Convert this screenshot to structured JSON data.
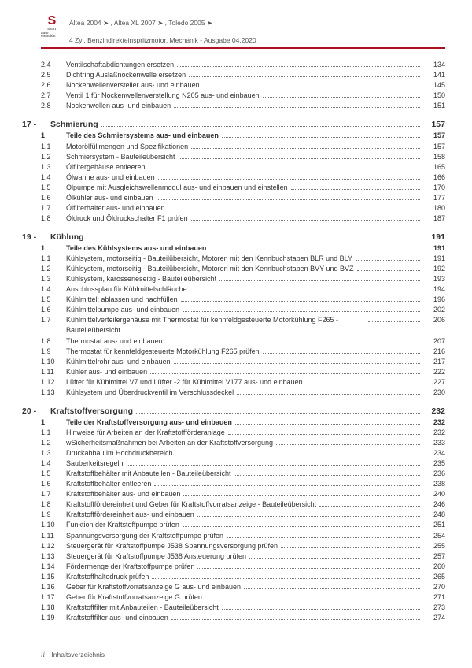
{
  "header": {
    "brand": "SEAT",
    "brand_sub": "auto emoción",
    "models": "Altea 2004 ➤ , Altea XL 2007 ➤ , Toledo 2005 ➤",
    "subtitle": "4 Zyl. Benzindirekteinspritzmotor, Mechanik - Ausgabe 04.2020",
    "divider_color": "#b01020"
  },
  "preItems": [
    {
      "num": "2.4",
      "label": "Ventilschaftabdichtungen ersetzen",
      "page": "134"
    },
    {
      "num": "2.5",
      "label": "Dichtring Auslaßnockenwelle ersetzen",
      "page": "141"
    },
    {
      "num": "2.6",
      "label": "Nockenwellenversteller aus- und einbauen",
      "page": "145"
    },
    {
      "num": "2.7",
      "label": "Ventil 1 für Nockenwellenverstellung N205 aus- und einbauen",
      "page": "150"
    },
    {
      "num": "2.8",
      "label": "Nockenwellen aus- und einbauen",
      "page": "151"
    }
  ],
  "sections": [
    {
      "num": "17 -",
      "title": "Schmierung",
      "page": "157",
      "subhead": {
        "num": "1",
        "label": "Teile des Schmiersystems aus- und einbauen",
        "page": "157"
      },
      "items": [
        {
          "num": "1.1",
          "label": "Motorölfüllmengen und Spezifikationen",
          "page": "157"
        },
        {
          "num": "1.2",
          "label": "Schmiersystem - Bauteileübersicht",
          "page": "158"
        },
        {
          "num": "1.3",
          "label": "Ölfiltergehäuse entleeren",
          "page": "165"
        },
        {
          "num": "1.4",
          "label": "Ölwanne aus- und einbauen",
          "page": "166"
        },
        {
          "num": "1.5",
          "label": "Ölpumpe mit Ausgleichswellenmodul aus- und einbauen und einstellen",
          "page": "170"
        },
        {
          "num": "1.6",
          "label": "Ölkühler aus- und einbauen",
          "page": "177"
        },
        {
          "num": "1.7",
          "label": "Ölfilterhalter aus- und einbauen",
          "page": "180"
        },
        {
          "num": "1.8",
          "label": "Öldruck und Öldruckschalter F1 prüfen",
          "page": "187"
        }
      ]
    },
    {
      "num": "19 -",
      "title": "Kühlung",
      "page": "191",
      "subhead": {
        "num": "1",
        "label": "Teile des Kühlsystems aus- und einbauen",
        "page": "191"
      },
      "items": [
        {
          "num": "1.1",
          "label": "Kühlsystem, motorseitig - Bauteilübersicht, Motoren mit den Kennbuchstaben BLR und BLY",
          "page": "191"
        },
        {
          "num": "1.2",
          "label": "Kühlsystem, motorseitig - Bauteilübersicht, Motoren mit den Kennbuchstaben BVY und BVZ",
          "page": "192"
        },
        {
          "num": "1.3",
          "label": "Kühlsystem, karosserieseitig - Bauteileübersicht",
          "page": "193"
        },
        {
          "num": "1.4",
          "label": "Anschlussplan für Kühlmittelschläuche",
          "page": "194"
        },
        {
          "num": "1.5",
          "label": "Kühlmittel: ablassen und nachfüllen",
          "page": "196"
        },
        {
          "num": "1.6",
          "label": "Kühlmittelpumpe aus- und einbauen",
          "page": "202"
        },
        {
          "num": "1.7",
          "label": "Kühlmittelverteilergehäuse mit Thermostat für kennfeldgesteuerte Motorkühlung F265 - Bauteileübersicht",
          "page": "206"
        },
        {
          "num": "1.8",
          "label": "Thermostat aus- und einbauen",
          "page": "207"
        },
        {
          "num": "1.9",
          "label": "Thermostat für kennfeldgesteuerte Motorkühlung F265 prüfen",
          "page": "216"
        },
        {
          "num": "1.10",
          "label": "Kühlmittelrohr aus- und einbauen",
          "page": "217"
        },
        {
          "num": "1.11",
          "label": "Kühler aus- und einbauen",
          "page": "222"
        },
        {
          "num": "1.12",
          "label": "Lüfter für Kühlmittel V7 und Lüfter -2 für Kühlmittel V177 aus- und einbauen",
          "page": "227"
        },
        {
          "num": "1.13",
          "label": "Kühlsystem und Überdruckventil im Verschlussdeckel",
          "page": "230"
        }
      ]
    },
    {
      "num": "20 -",
      "title": "Kraftstoffversorgung",
      "page": "232",
      "subhead": {
        "num": "1",
        "label": "Teile der Kraftstoffversorgung aus- und einbauen",
        "page": "232"
      },
      "items": [
        {
          "num": "1.1",
          "label": "Hinweise für Arbeiten an der Kraftstoffförderanlage",
          "page": "232"
        },
        {
          "num": "1.2",
          "label": "wSicherheitsmaßnahmen bei Arbeiten an der Kraftstoffversorgung",
          "page": "233"
        },
        {
          "num": "1.3",
          "label": "Druckabbau im Hochdruckbereich",
          "page": "234"
        },
        {
          "num": "1.4",
          "label": "Sauberkeitsregeln",
          "page": "235"
        },
        {
          "num": "1.5",
          "label": "Kraftstoffbehälter mit Anbauteilen - Bauteileübersicht",
          "page": "236"
        },
        {
          "num": "1.6",
          "label": "Kraftstoffbehälter entleeren",
          "page": "238"
        },
        {
          "num": "1.7",
          "label": "Kraftstoffbehälter aus- und einbauen",
          "page": "240"
        },
        {
          "num": "1.8",
          "label": "Kraftstofffördereinheit und Geber für Kraftstoffvorratsanzeige - Bauteileübersicht",
          "page": "246"
        },
        {
          "num": "1.9",
          "label": "Kraftstofffördereinheit aus- und einbauen",
          "page": "248"
        },
        {
          "num": "1.10",
          "label": "Funktion der Kraftstoffpumpe prüfen",
          "page": "251"
        },
        {
          "num": "1.11",
          "label": "Spannungsversorgung der Kraftstoffpumpe prüfen",
          "page": "254"
        },
        {
          "num": "1.12",
          "label": "Steuergerät für Kraftstoffpumpe J538 Spannungsversorgung prüfen",
          "page": "255"
        },
        {
          "num": "1.13",
          "label": "Steuergerät für Kraftstoffpumpe J538 Ansteuerung prüfen",
          "page": "257"
        },
        {
          "num": "1.14",
          "label": "Fördermenge der Kraftstoffpumpe prüfen",
          "page": "260"
        },
        {
          "num": "1.15",
          "label": "Kraftstoffhaltedruck prüfen",
          "page": "265"
        },
        {
          "num": "1.16",
          "label": "Geber für Kraftstoffvorratsanzeige G aus- und einbauen",
          "page": "270"
        },
        {
          "num": "1.17",
          "label": "Geber für Kraftstoffvorratsanzeige G prüfen",
          "page": "271"
        },
        {
          "num": "1.18",
          "label": "Kraftstofffilter mit Anbauteilen - Bauteileübersicht",
          "page": "273"
        },
        {
          "num": "1.19",
          "label": "Kraftstofffilter aus- und einbauen",
          "page": "274"
        }
      ]
    }
  ],
  "footer": {
    "page_roman": "ii",
    "label": "Inhaltsverzeichnis"
  }
}
